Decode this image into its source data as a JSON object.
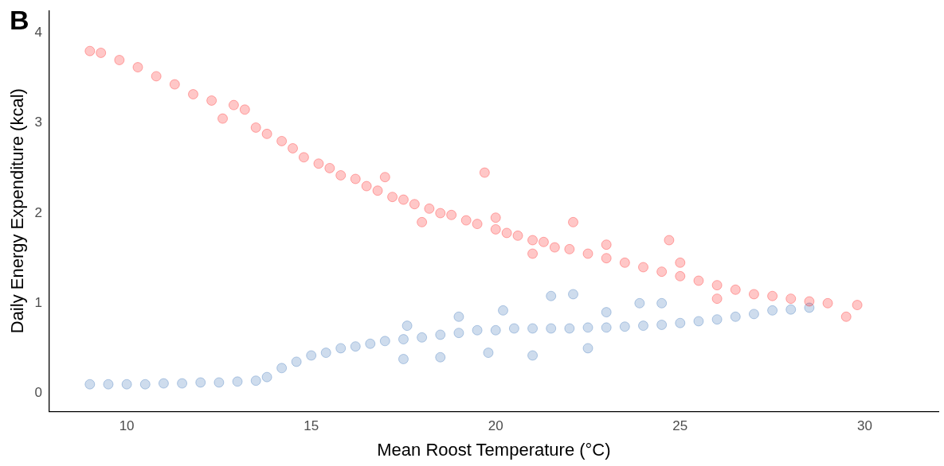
{
  "chart_data": {
    "type": "scatter",
    "xlabel": "Mean Roost Temperature (°C)",
    "ylabel": "Daily Energy Expenditure (kcal)",
    "annotations": [
      "B"
    ],
    "xlim": [
      7.9,
      32
    ],
    "xticks": [
      10,
      15,
      20,
      25,
      30
    ],
    "ylim": [
      -0.2,
      4.25
    ],
    "yticks": [
      0,
      1,
      2,
      3,
      4
    ],
    "grid": false,
    "legend": false,
    "marker": "circle",
    "series": [
      {
        "color": "#ff0000",
        "x": [
          9.0,
          9.3,
          9.8,
          10.3,
          10.8,
          11.3,
          11.8,
          12.3,
          12.6,
          12.9,
          13.2,
          13.5,
          13.8,
          14.2,
          14.5,
          14.8,
          15.2,
          15.5,
          15.8,
          16.2,
          16.5,
          16.8,
          17.2,
          17.5,
          17.8,
          18.2,
          18.5,
          18.8,
          19.2,
          19.5,
          19.7,
          20.0,
          20.3,
          20.6,
          21.0,
          21.3,
          21.6,
          22.1,
          22.0,
          22.5,
          23.0,
          23.5,
          24.0,
          24.5,
          24.7,
          25.0,
          25.5,
          26.0,
          26.5,
          27.0,
          27.5,
          28.0,
          28.5,
          29.0,
          29.5,
          29.8,
          17.0,
          18.0,
          20.0,
          21.0,
          23.0,
          25.0,
          26.0
        ],
        "values": [
          3.8,
          3.78,
          3.7,
          3.62,
          3.52,
          3.43,
          3.32,
          3.25,
          3.05,
          3.2,
          3.15,
          2.95,
          2.88,
          2.8,
          2.72,
          2.62,
          2.55,
          2.5,
          2.42,
          2.38,
          2.3,
          2.25,
          2.18,
          2.15,
          2.1,
          2.05,
          2.0,
          1.98,
          1.92,
          1.88,
          2.45,
          1.82,
          1.78,
          1.75,
          1.7,
          1.68,
          1.62,
          1.9,
          1.6,
          1.55,
          1.5,
          1.45,
          1.4,
          1.35,
          1.7,
          1.3,
          1.25,
          1.2,
          1.15,
          1.1,
          1.08,
          1.05,
          1.02,
          1.0,
          0.85,
          0.98,
          2.4,
          1.9,
          1.95,
          1.55,
          1.65,
          1.45,
          1.05
        ]
      },
      {
        "color": "#1f5faf",
        "x": [
          9.0,
          9.5,
          10.0,
          10.5,
          11.0,
          11.5,
          12.0,
          12.5,
          13.0,
          13.5,
          13.8,
          14.2,
          14.6,
          15.0,
          15.4,
          15.8,
          16.2,
          16.6,
          17.0,
          17.5,
          17.6,
          17.5,
          18.0,
          18.5,
          18.5,
          19.0,
          19.0,
          19.5,
          19.8,
          20.0,
          20.2,
          20.5,
          21.0,
          21.0,
          21.5,
          21.5,
          22.1,
          22.0,
          22.5,
          22.5,
          23.0,
          23.0,
          23.5,
          23.9,
          24.0,
          24.5,
          24.5,
          25.0,
          25.5,
          26.0,
          26.5,
          27.0,
          27.5,
          28.0,
          28.5
        ],
        "values": [
          0.1,
          0.1,
          0.1,
          0.1,
          0.11,
          0.11,
          0.12,
          0.12,
          0.13,
          0.14,
          0.18,
          0.28,
          0.35,
          0.42,
          0.45,
          0.5,
          0.52,
          0.55,
          0.58,
          0.6,
          0.75,
          0.38,
          0.62,
          0.65,
          0.4,
          0.67,
          0.85,
          0.7,
          0.45,
          0.7,
          0.92,
          0.72,
          0.72,
          0.42,
          1.08,
          0.72,
          1.1,
          0.72,
          0.5,
          0.73,
          0.73,
          0.9,
          0.74,
          1.0,
          0.75,
          1.0,
          0.76,
          0.78,
          0.8,
          0.82,
          0.85,
          0.88,
          0.92,
          0.93,
          0.95
        ]
      }
    ]
  }
}
